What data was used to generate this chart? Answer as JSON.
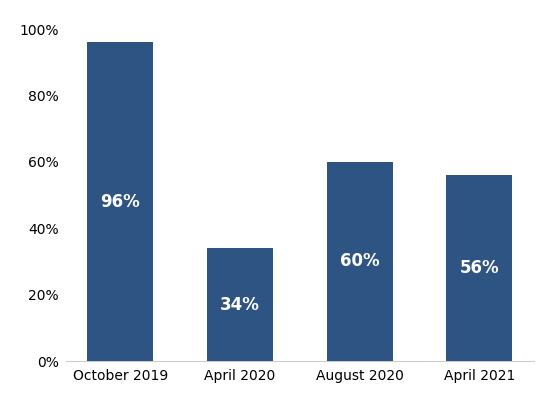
{
  "categories": [
    "October 2019",
    "April 2020",
    "August 2020",
    "April 2021"
  ],
  "values": [
    0.96,
    0.34,
    0.6,
    0.56
  ],
  "labels": [
    "96%",
    "34%",
    "60%",
    "56%"
  ],
  "bar_color": "#2E5483",
  "label_color": "#ffffff",
  "label_fontsize": 12,
  "label_fontweight": "bold",
  "yticks": [
    0.0,
    0.2,
    0.4,
    0.6,
    0.8,
    1.0
  ],
  "ytick_labels": [
    "0%",
    "20%",
    "40%",
    "60%",
    "80%",
    "100%"
  ],
  "ylim": [
    0,
    1.05
  ],
  "background_color": "#ffffff",
  "tick_fontsize": 10,
  "xlabel_fontsize": 10,
  "bar_width": 0.55
}
